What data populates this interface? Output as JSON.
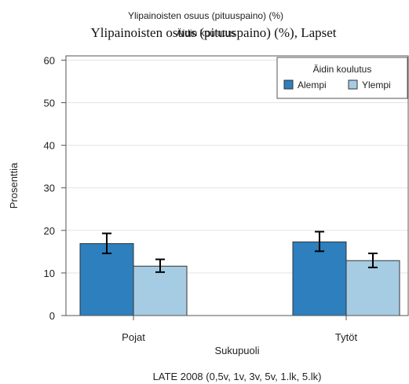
{
  "chart_data": {
    "type": "bar",
    "title_top": "Ylipainoisten osuus (pituuspaino) (%)",
    "title_overlap": "Äidin koulutus",
    "title": "Ylipainoisten osuus (pituuspaino) (%), Lapset",
    "xlabel": "Sukupuoli",
    "ylabel": "Prosenttia",
    "caption": "LATE 2008 (0,5v, 1v, 3v, 5v, 1.lk, 5.lk)",
    "categories": [
      "Pojat",
      "Tytöt"
    ],
    "ylim": [
      0,
      61
    ],
    "yticks": [
      0,
      10,
      20,
      30,
      40,
      50,
      60
    ],
    "grid": true,
    "legend": {
      "title": "Äidin koulutus",
      "placement": "top-right"
    },
    "series": [
      {
        "name": "Alempi",
        "color": "#2d7fbd",
        "values": [
          16.9,
          17.3
        ],
        "ci_low": [
          14.6,
          15.1
        ],
        "ci_high": [
          19.3,
          19.7
        ]
      },
      {
        "name": "Ylempi",
        "color": "#a6cce3",
        "values": [
          11.6,
          12.9
        ],
        "ci_low": [
          10.2,
          11.3
        ],
        "ci_high": [
          13.2,
          14.6
        ]
      }
    ]
  }
}
